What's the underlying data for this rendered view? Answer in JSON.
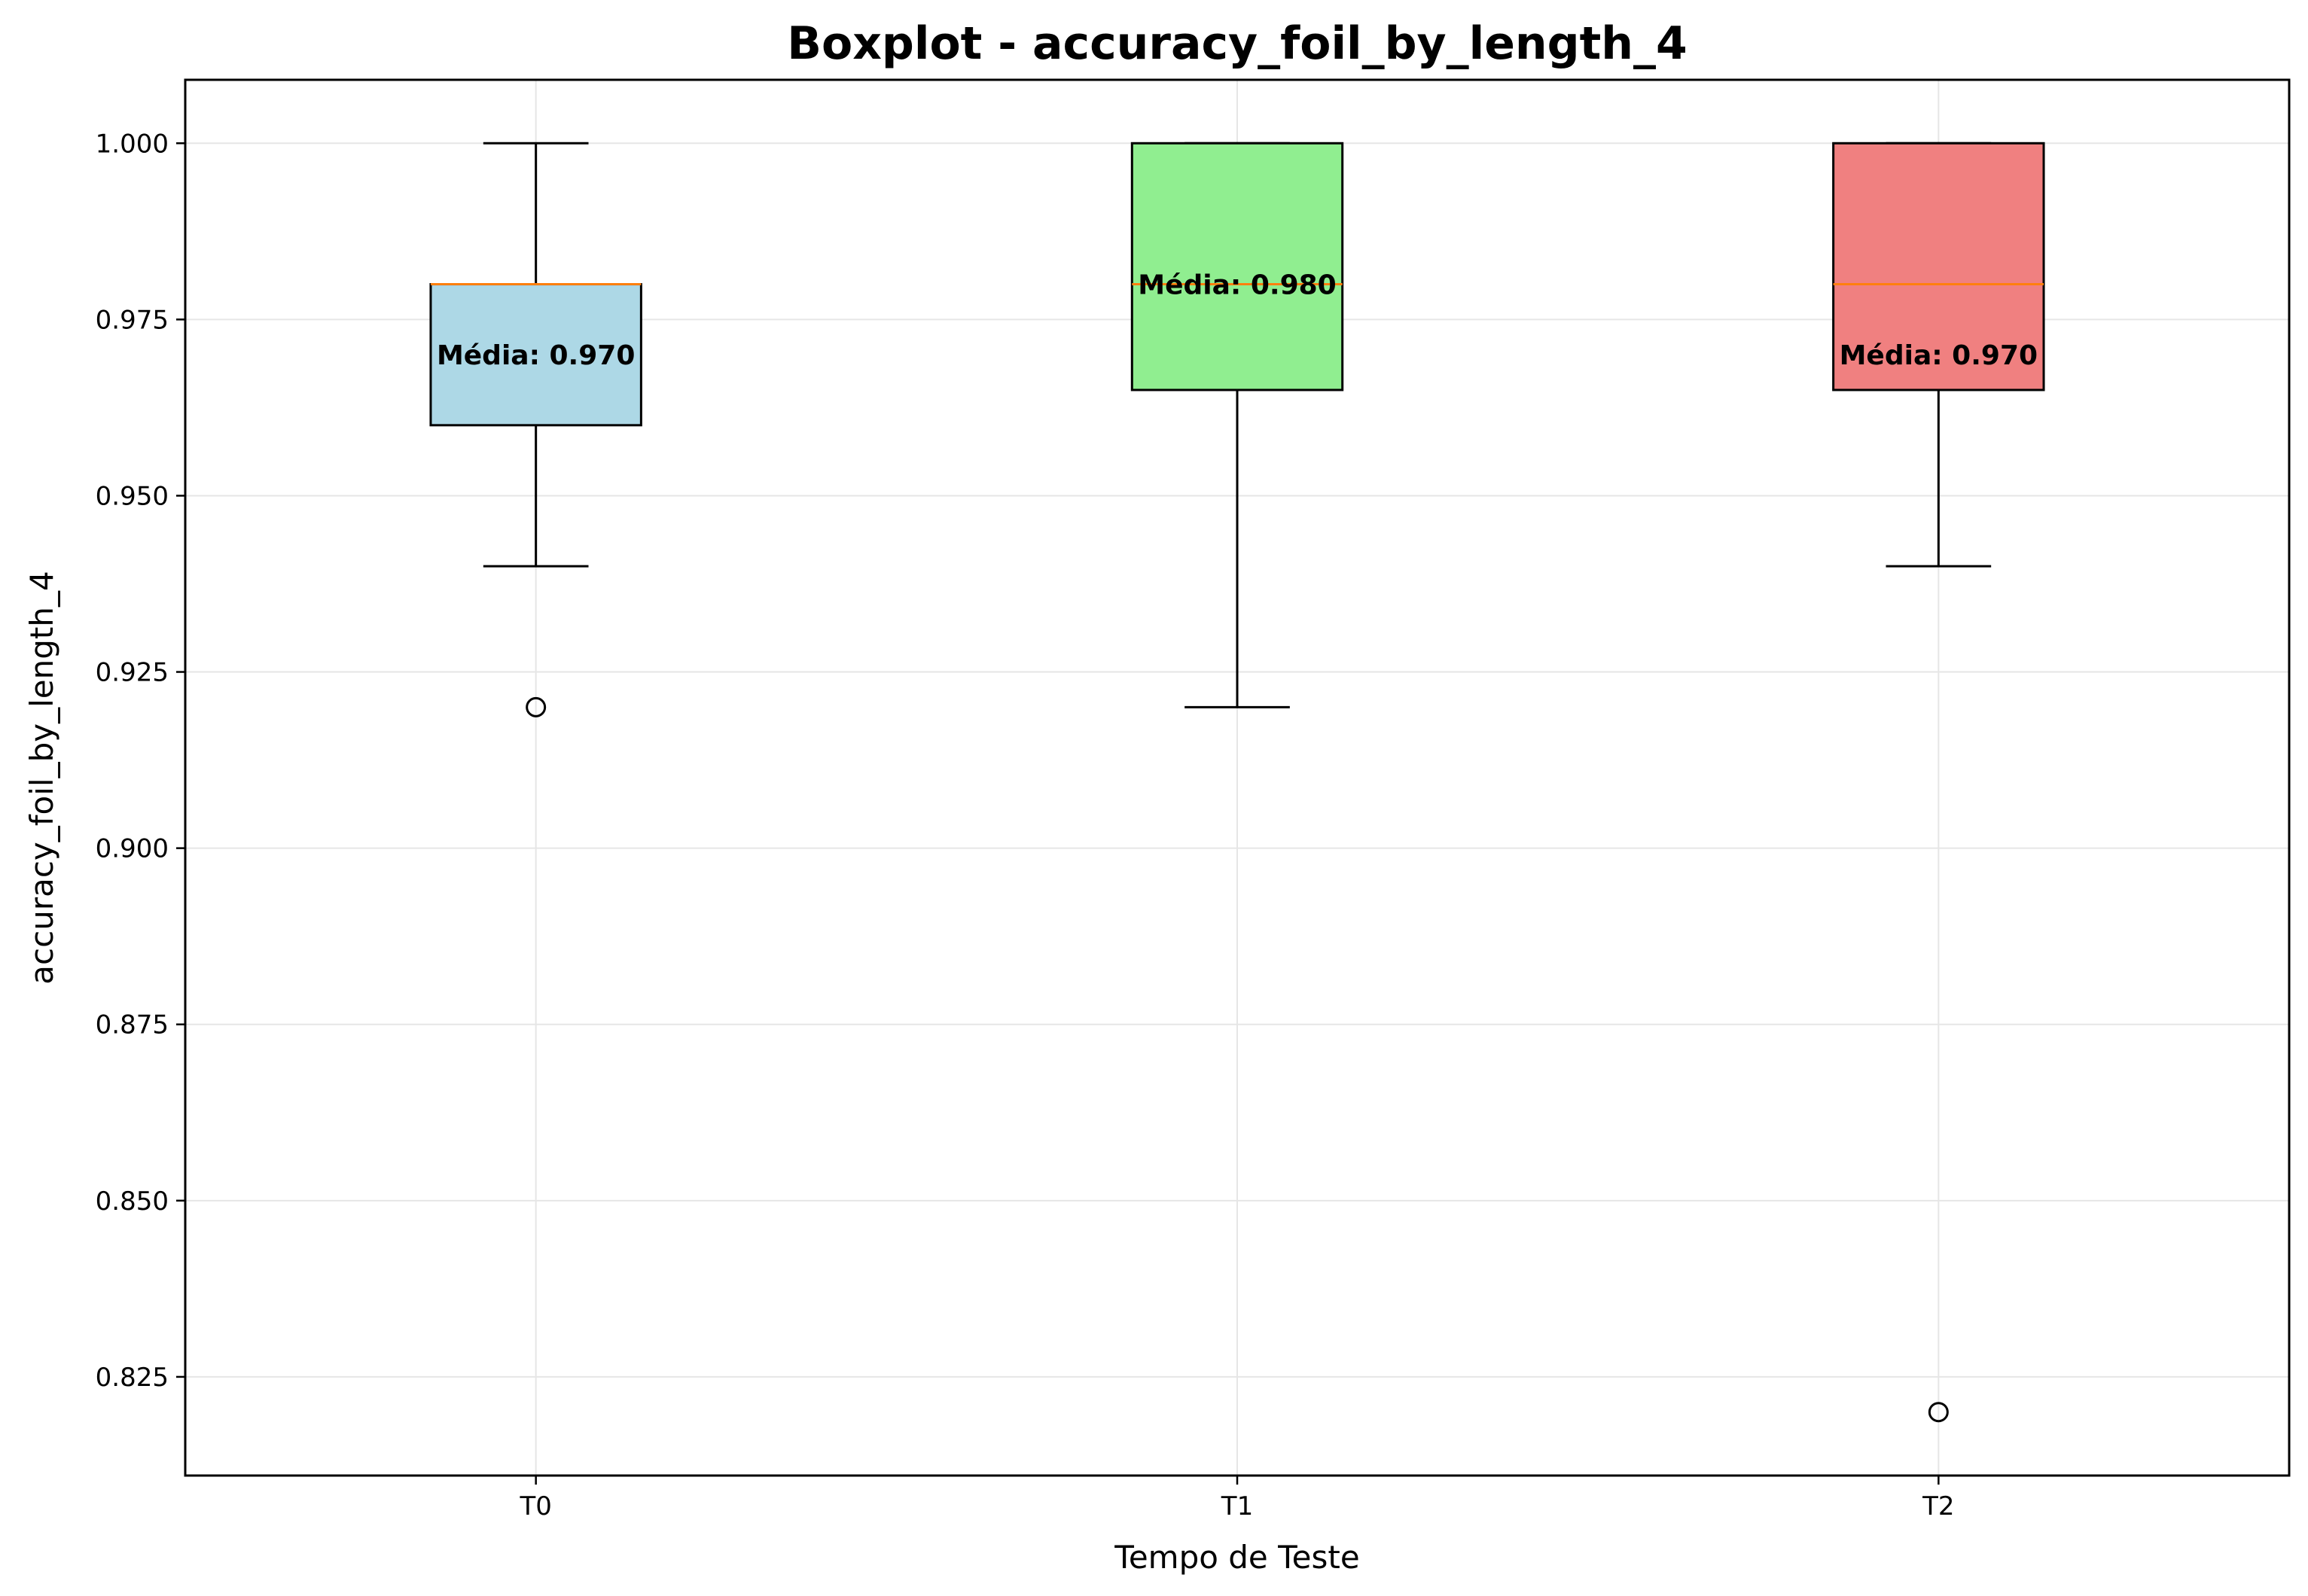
{
  "chart_data": {
    "type": "boxplot",
    "title": "Boxplot - accuracy_foil_by_length_4",
    "xlabel": "Tempo de Teste",
    "ylabel": "accuracy_foil_by_length_4",
    "categories": [
      "T0",
      "T1",
      "T2"
    ],
    "ylim": [
      0.811,
      1.009
    ],
    "yticks": [
      0.825,
      0.85,
      0.875,
      0.9,
      0.925,
      0.95,
      0.975,
      1.0
    ],
    "ytick_labels": [
      "0.825",
      "0.850",
      "0.875",
      "0.900",
      "0.925",
      "0.950",
      "0.975",
      "1.000"
    ],
    "grid": true,
    "boxes": [
      {
        "category": "T0",
        "whisker_low": 0.94,
        "q1": 0.96,
        "median": 0.98,
        "q3": 0.98,
        "whisker_high": 1.0,
        "outliers": [
          0.92
        ],
        "mean": 0.97,
        "mean_label": "Média: 0.970",
        "color": "#add8e6"
      },
      {
        "category": "T1",
        "whisker_low": 0.92,
        "q1": 0.965,
        "median": 0.98,
        "q3": 1.0,
        "whisker_high": 1.0,
        "outliers": [],
        "mean": 0.98,
        "mean_label": "Média: 0.980",
        "color": "#90ee90"
      },
      {
        "category": "T2",
        "whisker_low": 0.94,
        "q1": 0.965,
        "median": 0.98,
        "q3": 1.0,
        "whisker_high": 1.0,
        "outliers": [
          0.82
        ],
        "mean": 0.97,
        "mean_label": "Média: 0.970",
        "color": "#f08080"
      }
    ],
    "median_color": "#ff7f0e"
  }
}
